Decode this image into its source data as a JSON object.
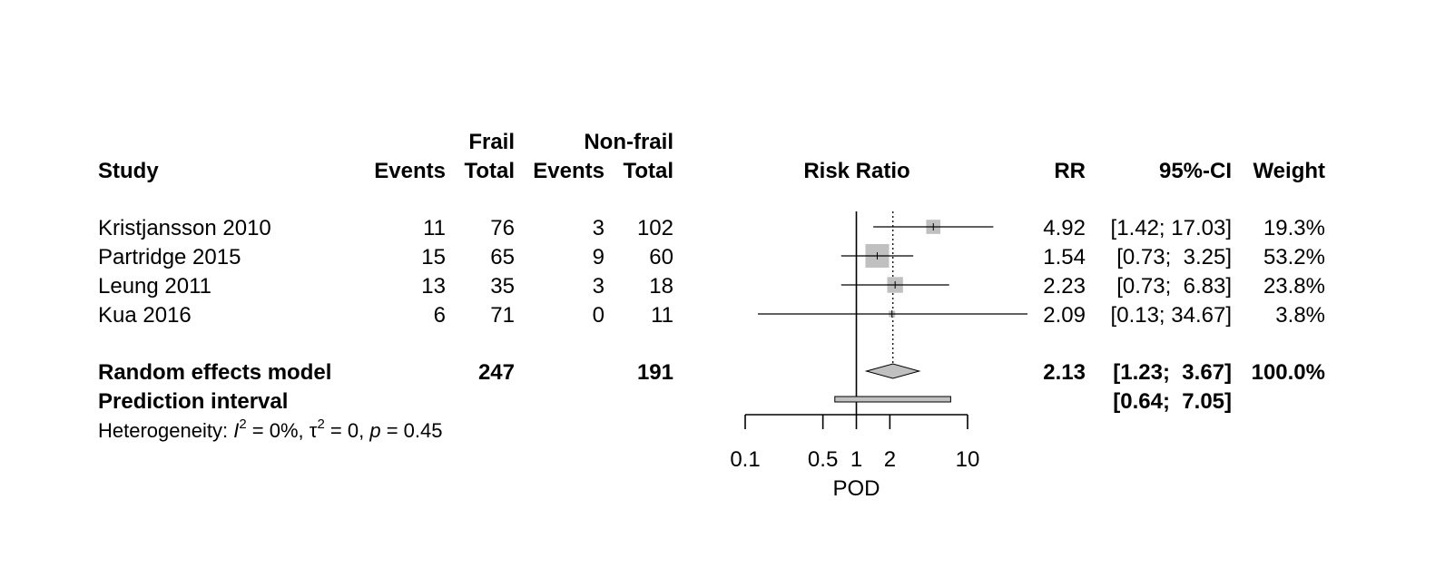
{
  "header": {
    "frail": "Frail",
    "nonfrail": "Non-frail",
    "study": "Study",
    "events_frail": "Events",
    "total_frail": "Total",
    "events_nonfrail": "Events",
    "total_nonfrail": "Total",
    "risk_ratio": "Risk Ratio",
    "rr": "RR",
    "ci": "95%-CI",
    "weight": "Weight"
  },
  "studies": [
    {
      "name": "Kristjansson 2010",
      "events_frail": "11",
      "total_frail": "76",
      "events_nonfrail": "3",
      "total_nonfrail": "102",
      "rr_text": "4.92",
      "ci_text": "[1.42; 17.03]",
      "weight_text": "19.3%"
    },
    {
      "name": "Partridge 2015",
      "events_frail": "15",
      "total_frail": "65",
      "events_nonfrail": "9",
      "total_nonfrail": "60",
      "rr_text": "1.54",
      "ci_text": "[0.73;  3.25]",
      "weight_text": "53.2%"
    },
    {
      "name": "Leung 2011",
      "events_frail": "13",
      "total_frail": "35",
      "events_nonfrail": "3",
      "total_nonfrail": "18",
      "rr_text": "2.23",
      "ci_text": "[0.73;  6.83]",
      "weight_text": "23.8%"
    },
    {
      "name": "Kua 2016",
      "events_frail": "6",
      "total_frail": "71",
      "events_nonfrail": "0",
      "total_nonfrail": "11",
      "rr_text": "2.09",
      "ci_text": "[0.13; 34.67]",
      "weight_text": "3.8%"
    }
  ],
  "summary": {
    "label": "Random effects model",
    "total_frail": "247",
    "total_nonfrail": "191",
    "rr_text": "2.13",
    "ci_text": "[1.23;  3.67]",
    "weight_text": "100.0%"
  },
  "prediction": {
    "label": "Prediction interval",
    "ci_text": "[0.64;  7.05]"
  },
  "heterogeneity": {
    "prefix": "Heterogeneity: ",
    "i2_symbol": "I",
    "exp": "2",
    "i2_value": " = 0%, ",
    "tau_symbol": "τ",
    "tau_value": " = 0, ",
    "p_symbol": "p",
    "p_value": " = 0.45"
  },
  "chart_data": {
    "type": "forest",
    "scale": "log",
    "xlim": [
      0.1,
      10
    ],
    "xticks": [
      0.1,
      0.5,
      1,
      2,
      10
    ],
    "xtick_labels": [
      "0.1",
      "0.5",
      "1",
      "2",
      "10"
    ],
    "xlabel": "POD",
    "reference_line": 1,
    "summary_line": 2.13,
    "studies": [
      {
        "rr": 4.92,
        "lower": 1.42,
        "upper": 17.03,
        "weight": 19.3
      },
      {
        "rr": 1.54,
        "lower": 0.73,
        "upper": 3.25,
        "weight": 53.2
      },
      {
        "rr": 2.23,
        "lower": 0.73,
        "upper": 6.83,
        "weight": 23.8
      },
      {
        "rr": 2.09,
        "lower": 0.13,
        "upper": 34.67,
        "weight": 3.8
      }
    ],
    "summary": {
      "rr": 2.13,
      "lower": 1.23,
      "upper": 3.67
    },
    "prediction": {
      "lower": 0.64,
      "upper": 7.05
    },
    "colors": {
      "box": "#c0c0c0",
      "diamond": "#c0c0c0",
      "line": "#000000"
    }
  }
}
